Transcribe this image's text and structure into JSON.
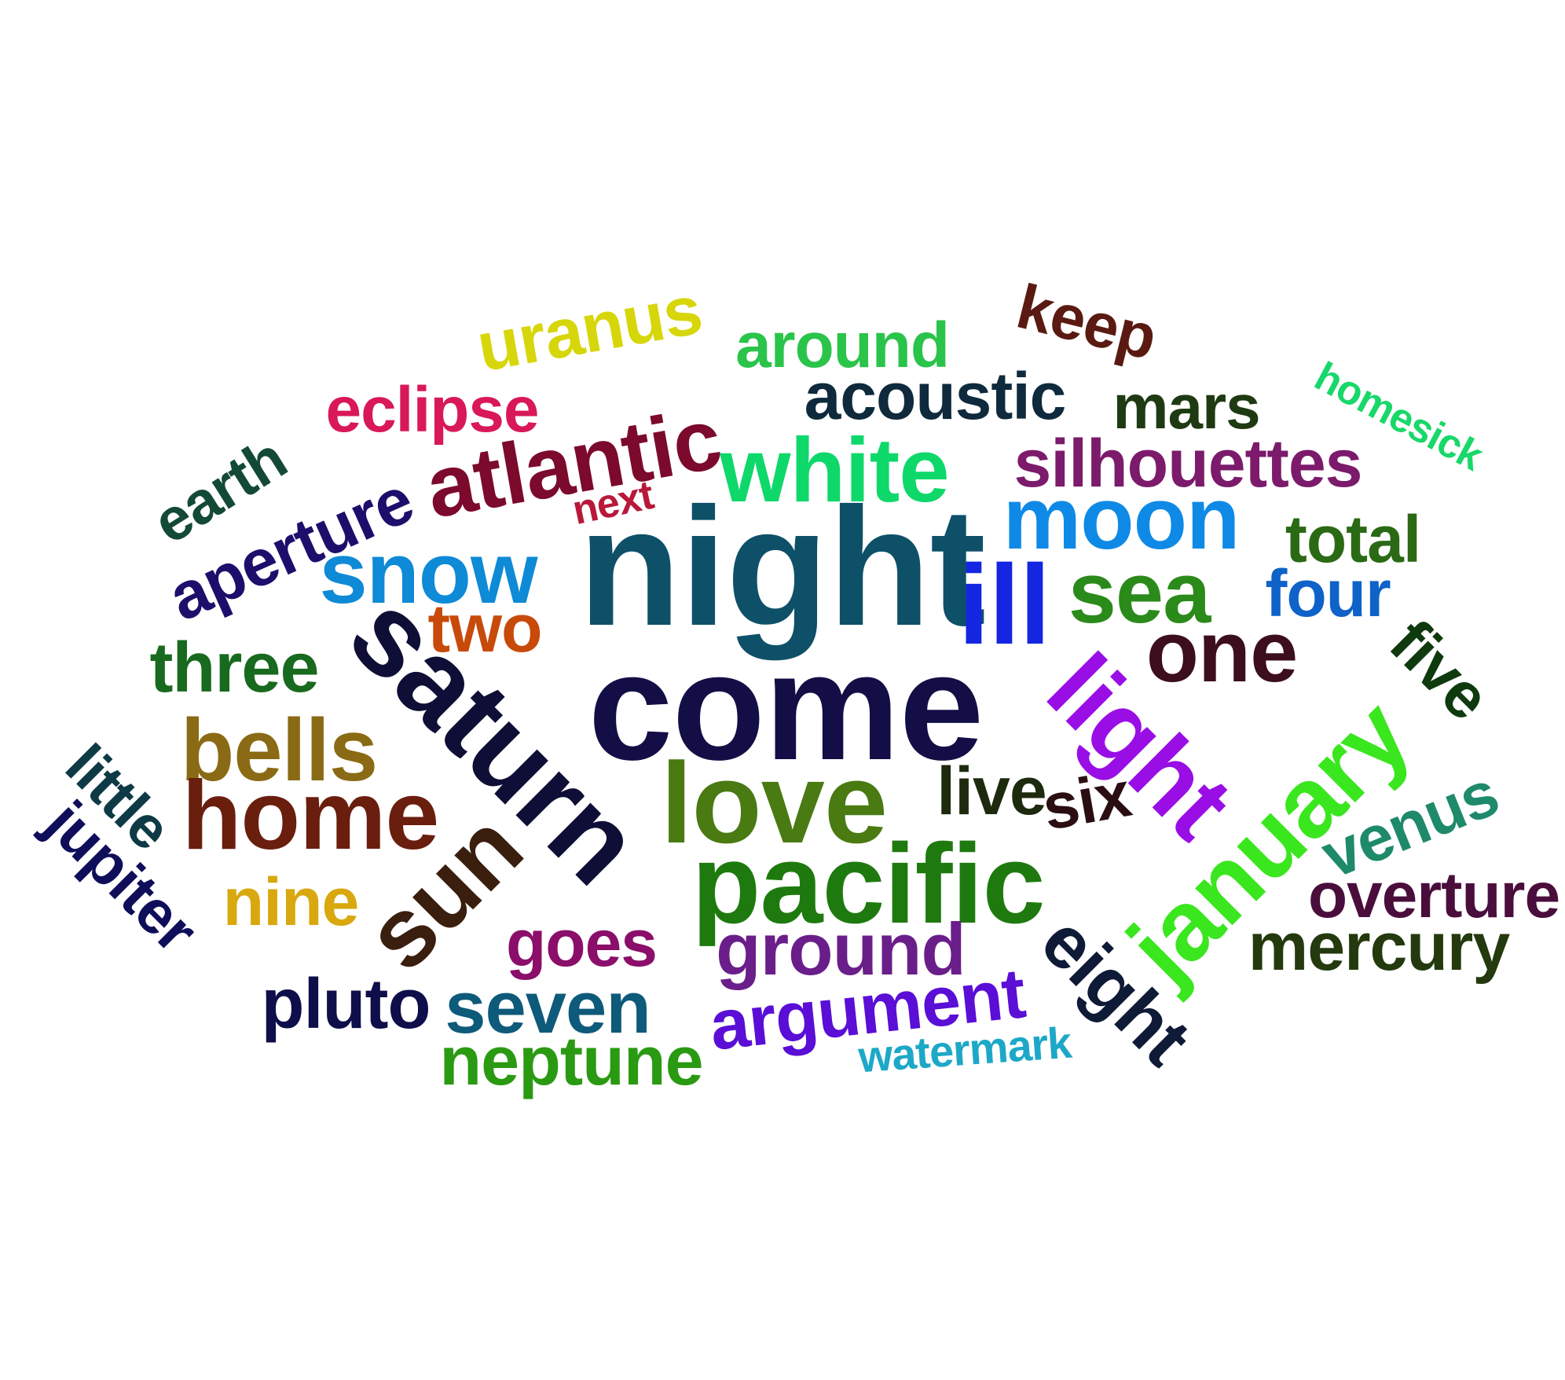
{
  "word_cloud": {
    "words": [
      {
        "text": "uranus",
        "color": "#d6d60b"
      },
      {
        "text": "around",
        "color": "#2ac44a"
      },
      {
        "text": "keep",
        "color": "#5a1a12"
      },
      {
        "text": "homesick",
        "color": "#18d86a"
      },
      {
        "text": "eclipse",
        "color": "#d8185a"
      },
      {
        "text": "acoustic",
        "color": "#0e2a3c"
      },
      {
        "text": "mars",
        "color": "#1e3a12"
      },
      {
        "text": "earth",
        "color": "#134a36"
      },
      {
        "text": "atlantic",
        "color": "#7c0a2c"
      },
      {
        "text": "white",
        "color": "#0ed86a"
      },
      {
        "text": "silhouettes",
        "color": "#7c1a6c"
      },
      {
        "text": "aperture",
        "color": "#1e0e6c"
      },
      {
        "text": "next",
        "color": "#b8183a"
      },
      {
        "text": "moon",
        "color": "#0e8ae6"
      },
      {
        "text": "total",
        "color": "#2a6a14"
      },
      {
        "text": "snow",
        "color": "#0e8ad6"
      },
      {
        "text": "night",
        "color": "#0e5068"
      },
      {
        "text": "ill",
        "color": "#1426e0"
      },
      {
        "text": "sea",
        "color": "#2a8a1a"
      },
      {
        "text": "four",
        "color": "#0e62c8"
      },
      {
        "text": "two",
        "color": "#c84a0a"
      },
      {
        "text": "one",
        "color": "#3c0e1e"
      },
      {
        "text": "five",
        "color": "#0e3a0e"
      },
      {
        "text": "three",
        "color": "#186a1e"
      },
      {
        "text": "saturn",
        "color": "#0e0e36"
      },
      {
        "text": "come",
        "color": "#130e46"
      },
      {
        "text": "light",
        "color": "#9a0ee6"
      },
      {
        "text": "bells",
        "color": "#8a6a14"
      },
      {
        "text": "little",
        "color": "#0e3a46"
      },
      {
        "text": "january",
        "color": "#3ae61e"
      },
      {
        "text": "live",
        "color": "#1e2a0e"
      },
      {
        "text": "six",
        "color": "#2a0e12"
      },
      {
        "text": "venus",
        "color": "#1e8a6a"
      },
      {
        "text": "love",
        "color": "#4a7a12"
      },
      {
        "text": "home",
        "color": "#6a1e0e"
      },
      {
        "text": "jupiter",
        "color": "#0e0e5a"
      },
      {
        "text": "pacific",
        "color": "#1e7a0e"
      },
      {
        "text": "sun",
        "color": "#3a1e0e"
      },
      {
        "text": "overture",
        "color": "#4a0e3c"
      },
      {
        "text": "nine",
        "color": "#d8a80e"
      },
      {
        "text": "goes",
        "color": "#8a0e6a"
      },
      {
        "text": "ground",
        "color": "#6a1e8a"
      },
      {
        "text": "mercury",
        "color": "#243a0e"
      },
      {
        "text": "eight",
        "color": "#0e1a36"
      },
      {
        "text": "pluto",
        "color": "#0e0e4a"
      },
      {
        "text": "seven",
        "color": "#0e5a7a"
      },
      {
        "text": "argument",
        "color": "#5a0ed6"
      },
      {
        "text": "neptune",
        "color": "#2a9a12"
      },
      {
        "text": "watermark",
        "color": "#1ea8c8"
      }
    ]
  }
}
